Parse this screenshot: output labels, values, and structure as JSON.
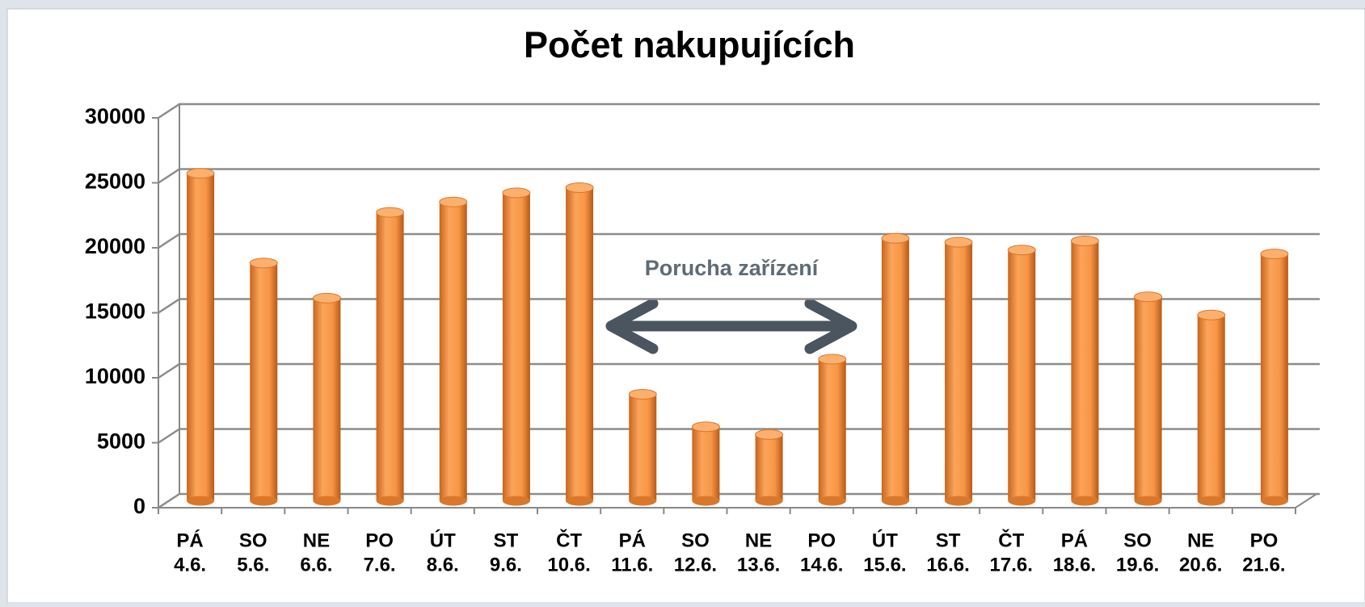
{
  "chart_data": {
    "type": "bar",
    "title": "Počet nakupujících",
    "categories": [
      [
        "PÁ",
        "4.6."
      ],
      [
        "SO",
        "5.6."
      ],
      [
        "NE",
        "6.6."
      ],
      [
        "PO",
        "7.6."
      ],
      [
        "ÚT",
        "8.6."
      ],
      [
        "ST",
        "9.6."
      ],
      [
        "ČT",
        "10.6."
      ],
      [
        "PÁ",
        "11.6."
      ],
      [
        "SO",
        "12.6."
      ],
      [
        "NE",
        "13.6."
      ],
      [
        "PO",
        "14.6."
      ],
      [
        "ÚT",
        "15.6."
      ],
      [
        "ST",
        "16.6."
      ],
      [
        "ČT",
        "17.6."
      ],
      [
        "PÁ",
        "18.6."
      ],
      [
        "SO",
        "19.6."
      ],
      [
        "NE",
        "20.6."
      ],
      [
        "PO",
        "21.6."
      ]
    ],
    "values": [
      25200,
      18300,
      15600,
      22200,
      23000,
      23700,
      24100,
      8200,
      5700,
      5100,
      10900,
      20200,
      19900,
      19300,
      20000,
      15700,
      14300,
      19000
    ],
    "color": "#f79646",
    "ylim": [
      0,
      30000
    ],
    "yticks": [
      0,
      5000,
      10000,
      15000,
      20000,
      25000,
      30000
    ],
    "grid": true,
    "annotation": "Porucha zařízení"
  }
}
